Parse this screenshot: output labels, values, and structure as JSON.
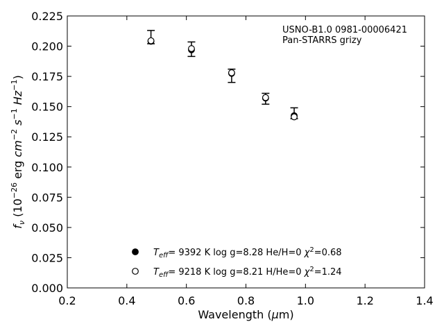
{
  "chart_data": {
    "type": "scatter",
    "title": "",
    "xlabel": "Wavelength (μm)",
    "ylabel": "fν (10⁻²⁶ erg cm⁻² s⁻¹ Hz⁻¹)",
    "xlim": [
      0.2,
      1.4
    ],
    "ylim": [
      0.0,
      0.225
    ],
    "x_ticks": [
      "0.2",
      "0.4",
      "0.6",
      "0.8",
      "1.0",
      "1.2",
      "1.4"
    ],
    "y_ticks": [
      "0.000",
      "0.025",
      "0.050",
      "0.075",
      "0.100",
      "0.125",
      "0.150",
      "0.175",
      "0.200",
      "0.225"
    ],
    "grid": false,
    "annotation": [
      "USNO-B1.0 0981-00006421",
      "Pan-STARRS grizy"
    ],
    "observed": {
      "x": [
        0.481,
        0.617,
        0.752,
        0.866,
        0.962
      ],
      "y": [
        0.2075,
        0.1975,
        0.1755,
        0.1565,
        0.1445
      ],
      "yerr": [
        0.0055,
        0.006,
        0.0055,
        0.0045,
        0.0045
      ]
    },
    "series": [
      {
        "marker": "filled-circle",
        "label_parts": {
          "teff": "9392 K",
          "logg": "log g=8.28",
          "comp": "He/H=0",
          "chi2": "=0.68"
        },
        "x": [
          0.481,
          0.617,
          0.752,
          0.866,
          0.962
        ],
        "y": [
          0.204,
          0.197,
          0.1775,
          0.157,
          0.1425
        ]
      },
      {
        "marker": "open-circle",
        "label_parts": {
          "teff": "9218 K",
          "logg": "log g=8.21",
          "comp": "H/He=0",
          "chi2": "=1.24"
        },
        "x": [
          0.481,
          0.617,
          0.752,
          0.866,
          0.962
        ],
        "y": [
          0.2045,
          0.198,
          0.178,
          0.1575,
          0.1415
        ]
      }
    ],
    "legend_position": "lower-center"
  }
}
